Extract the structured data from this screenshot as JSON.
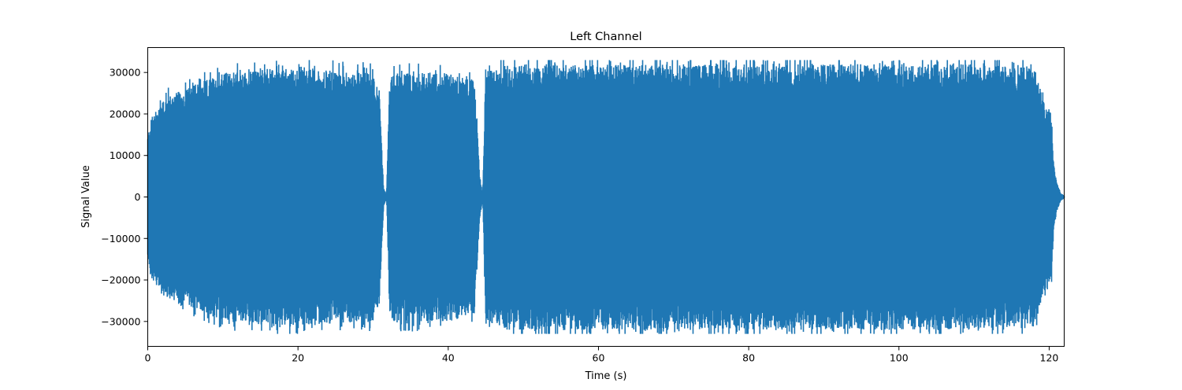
{
  "chart_data": {
    "type": "line",
    "title": "Left Channel",
    "xlabel": "Time (s)",
    "ylabel": "Signal Value",
    "xlim": [
      0,
      122
    ],
    "ylim": [
      -36000,
      36000
    ],
    "x_ticks": [
      0,
      20,
      40,
      60,
      80,
      100,
      120
    ],
    "y_ticks": [
      -30000,
      -20000,
      -10000,
      0,
      10000,
      20000,
      30000
    ],
    "x_tick_labels": [
      "0",
      "20",
      "40",
      "60",
      "80",
      "100",
      "120"
    ],
    "y_tick_labels": [
      "−30000",
      "−20000",
      "−10000",
      "0",
      "10000",
      "20000",
      "30000"
    ],
    "grid": false,
    "color": "#1f77b4",
    "series": [
      {
        "envelope": {
          "t": [
            0,
            0.5,
            2,
            5,
            10,
            20,
            30,
            30.8,
            31.4,
            31.8,
            32.2,
            32.7,
            40,
            43.5,
            44.2,
            44.6,
            45.0,
            48,
            60,
            80,
            100,
            110,
            118,
            119.5,
            120.3,
            120.6,
            121,
            121.5,
            122
          ],
          "upper": [
            15000,
            19000,
            24000,
            26000,
            30000,
            31000,
            30000,
            26000,
            2000,
            600,
            28000,
            30000,
            30000,
            28000,
            5000,
            700,
            30000,
            32000,
            32000,
            32000,
            32000,
            32000,
            31000,
            22000,
            20000,
            8000,
            3500,
            1000,
            300
          ],
          "lower": [
            -15000,
            -19000,
            -24000,
            -26000,
            -30000,
            -31000,
            -30000,
            -26000,
            -2000,
            -600,
            -28000,
            -30000,
            -30000,
            -28000,
            -5000,
            -700,
            -30000,
            -32000,
            -32000,
            -32000,
            -32000,
            -32000,
            -31000,
            -22000,
            -20000,
            -8000,
            -3500,
            -1000,
            -300
          ]
        }
      }
    ]
  }
}
